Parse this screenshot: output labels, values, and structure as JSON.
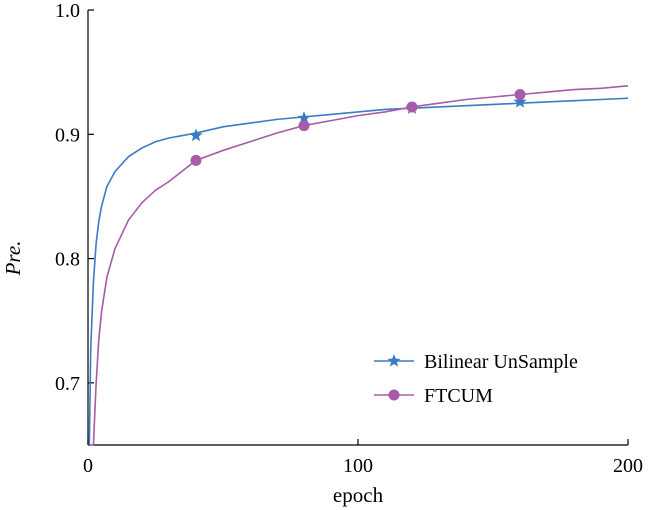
{
  "chart_data": {
    "type": "line",
    "title": "",
    "xlabel": "epoch",
    "ylabel": "Pre.",
    "xlim": [
      0,
      200
    ],
    "ylim": [
      0.65,
      1.0
    ],
    "xticks": [
      "0",
      "100",
      "200"
    ],
    "yticks": [
      "0.7",
      "0.8",
      "0.9",
      "1.0"
    ],
    "grid": false,
    "legend_position": "bottom-right",
    "x": [
      0.5,
      1,
      2,
      3,
      4,
      5,
      7,
      10,
      15,
      20,
      25,
      30,
      40,
      50,
      60,
      70,
      80,
      90,
      100,
      110,
      120,
      130,
      140,
      150,
      160,
      170,
      180,
      190,
      200
    ],
    "series": [
      {
        "name": "Bilinear UnSample",
        "color": "#3a7cc4",
        "marker": "star",
        "values": [
          0.65,
          0.727,
          0.781,
          0.812,
          0.83,
          0.842,
          0.858,
          0.87,
          0.882,
          0.889,
          0.894,
          0.897,
          0.901,
          0.906,
          0.909,
          0.912,
          0.914,
          0.916,
          0.918,
          0.92,
          0.921,
          0.922,
          0.923,
          0.924,
          0.925,
          0.926,
          0.927,
          0.928,
          0.929
        ],
        "marker_x": [
          40,
          80,
          120,
          160
        ],
        "marker_y": [
          0.899,
          0.913,
          0.921,
          0.926
        ]
      },
      {
        "name": "FTCUM",
        "color": "#a75ba8",
        "marker": "circle",
        "values": [
          0.65,
          0.65,
          0.65,
          0.699,
          0.735,
          0.757,
          0.785,
          0.808,
          0.831,
          0.845,
          0.855,
          0.862,
          0.879,
          0.887,
          0.894,
          0.901,
          0.907,
          0.911,
          0.915,
          0.918,
          0.922,
          0.925,
          0.928,
          0.93,
          0.932,
          0.934,
          0.936,
          0.937,
          0.939
        ],
        "marker_x": [
          40,
          80,
          120,
          160
        ],
        "marker_y": [
          0.879,
          0.907,
          0.922,
          0.932
        ]
      }
    ]
  }
}
